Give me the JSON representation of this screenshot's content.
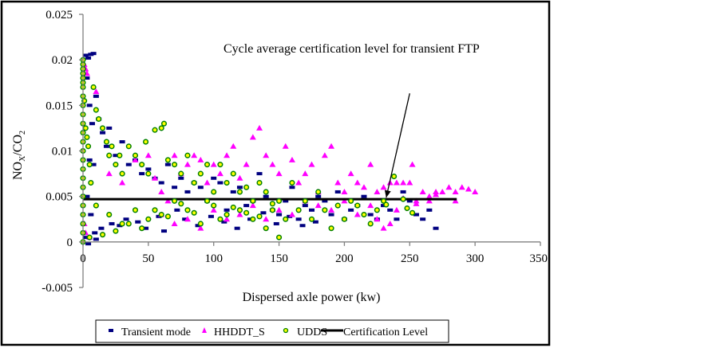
{
  "chart_data": {
    "type": "scatter",
    "title": "",
    "xlabel": "Dispersed axle power (kw)",
    "ylabel_main": "NO",
    "ylabel_sub1": "X",
    "ylabel_mid": "/CO",
    "ylabel_sub2": "2",
    "xlim": [
      0,
      350
    ],
    "ylim": [
      -0.005,
      0.025
    ],
    "x_ticks": [
      0,
      50,
      100,
      150,
      200,
      250,
      300,
      350
    ],
    "x_tick_labels": [
      "0",
      "50",
      "100",
      "150",
      "200",
      "250",
      "300",
      "350"
    ],
    "y_ticks": [
      -0.005,
      0,
      0.005,
      0.01,
      0.015,
      0.02,
      0.025
    ],
    "y_tick_labels": [
      "-0.005",
      "0",
      "0.005",
      "0.01",
      "0.015",
      "0.02",
      "0.025"
    ],
    "grid": false,
    "legend_position": "bottom",
    "annotation": {
      "text": "Cycle average certification level for transient FTP",
      "arrow_from": [
        250,
        0.0102
      ],
      "arrow_to": [
        232,
        0.0047
      ]
    },
    "series": [
      {
        "name": "Transient mode",
        "marker": "dash",
        "color": "#000080",
        "points": [
          [
            2,
            0.0205
          ],
          [
            4,
            0.0202
          ],
          [
            6,
            0.0206
          ],
          [
            8,
            0.0207
          ],
          [
            3,
            0.018
          ],
          [
            5,
            0.015
          ],
          [
            10,
            0.016
          ],
          [
            7,
            0.013
          ],
          [
            12,
            0.0135
          ],
          [
            15,
            0.012
          ],
          [
            20,
            0.0125
          ],
          [
            18,
            0.0105
          ],
          [
            25,
            0.0095
          ],
          [
            30,
            0.011
          ],
          [
            35,
            0.0085
          ],
          [
            40,
            0.009
          ],
          [
            45,
            0.0075
          ],
          [
            50,
            0.008
          ],
          [
            55,
            0.007
          ],
          [
            60,
            0.0065
          ],
          [
            65,
            0.0085
          ],
          [
            70,
            0.006
          ],
          [
            75,
            0.007
          ],
          [
            80,
            0.0055
          ],
          [
            85,
            0.0065
          ],
          [
            90,
            0.006
          ],
          [
            95,
            0.0045
          ],
          [
            100,
            0.007
          ],
          [
            105,
            0.0065
          ],
          [
            110,
            0.0035
          ],
          [
            115,
            0.0055
          ],
          [
            120,
            0.006
          ],
          [
            125,
            0.004
          ],
          [
            130,
            0.0045
          ],
          [
            135,
            0.0075
          ],
          [
            140,
            0.005
          ],
          [
            145,
            0.0035
          ],
          [
            150,
            0.003
          ],
          [
            155,
            0.0045
          ],
          [
            160,
            0.006
          ],
          [
            165,
            0.0025
          ],
          [
            170,
            0.004
          ],
          [
            175,
            0.0035
          ],
          [
            180,
            0.005
          ],
          [
            185,
            0.0045
          ],
          [
            190,
            0.003
          ],
          [
            195,
            0.0055
          ],
          [
            200,
            0.0025
          ],
          [
            205,
            0.0035
          ],
          [
            210,
            0.004
          ],
          [
            215,
            0.005
          ],
          [
            220,
            0.003
          ],
          [
            225,
            0.0025
          ],
          [
            230,
            0.004
          ],
          [
            235,
            0.0035
          ],
          [
            240,
            0.0025
          ],
          [
            245,
            0.0055
          ],
          [
            250,
            0.0045
          ],
          [
            255,
            0.003
          ],
          [
            260,
            0.0025
          ],
          [
            265,
            0.0035
          ],
          [
            270,
            0.0015
          ],
          [
            5,
            0.009
          ],
          [
            8,
            0.0085
          ],
          [
            3,
            0.005
          ],
          [
            6,
            0.003
          ],
          [
            9,
            0.001
          ],
          [
            14,
            0.0015
          ],
          [
            22,
            0.002
          ],
          [
            28,
            0.0018
          ],
          [
            33,
            0.0025
          ],
          [
            42,
            0.0022
          ],
          [
            48,
            0.0015
          ],
          [
            58,
            0.0028
          ],
          [
            62,
            0.0012
          ],
          [
            72,
            0.0035
          ],
          [
            78,
            0.0025
          ],
          [
            88,
            0.0018
          ],
          [
            98,
            0.0028
          ],
          [
            108,
            0.0022
          ],
          [
            118,
            0.0015
          ],
          [
            128,
            0.0025
          ],
          [
            138,
            0.0032
          ],
          [
            148,
            0.002
          ],
          [
            158,
            0.0028
          ],
          [
            168,
            0.0018
          ],
          [
            178,
            0.0022
          ],
          [
            2,
            0.0005
          ],
          [
            4,
            -0.0002
          ],
          [
            10,
            0.0003
          ]
        ]
      },
      {
        "name": "HHDDT_S",
        "marker": "triangle",
        "color": "#ff00ff",
        "points": [
          [
            1,
            0.0195
          ],
          [
            2,
            0.019
          ],
          [
            3,
            0.0185
          ],
          [
            1,
            0.002
          ],
          [
            2,
            0.001
          ],
          [
            5,
            0.0005
          ],
          [
            10,
            0.0165
          ],
          [
            20,
            0.0075
          ],
          [
            30,
            0.0065
          ],
          [
            40,
            0.009
          ],
          [
            50,
            0.0095
          ],
          [
            55,
            0.007
          ],
          [
            60,
            0.0055
          ],
          [
            65,
            0.0045
          ],
          [
            70,
            0.0095
          ],
          [
            75,
            0.0075
          ],
          [
            80,
            0.0085
          ],
          [
            85,
            0.0095
          ],
          [
            90,
            0.009
          ],
          [
            95,
            0.0065
          ],
          [
            100,
            0.0085
          ],
          [
            105,
            0.0075
          ],
          [
            110,
            0.0095
          ],
          [
            115,
            0.0105
          ],
          [
            120,
            0.007
          ],
          [
            125,
            0.0085
          ],
          [
            130,
            0.0115
          ],
          [
            135,
            0.0125
          ],
          [
            140,
            0.0095
          ],
          [
            145,
            0.0085
          ],
          [
            150,
            0.0075
          ],
          [
            155,
            0.0105
          ],
          [
            160,
            0.009
          ],
          [
            165,
            0.0065
          ],
          [
            170,
            0.0075
          ],
          [
            175,
            0.0085
          ],
          [
            180,
            0.0055
          ],
          [
            185,
            0.0095
          ],
          [
            190,
            0.0105
          ],
          [
            195,
            0.0065
          ],
          [
            200,
            0.0055
          ],
          [
            205,
            0.0075
          ],
          [
            210,
            0.0065
          ],
          [
            215,
            0.006
          ],
          [
            220,
            0.0085
          ],
          [
            225,
            0.0055
          ],
          [
            230,
            0.006
          ],
          [
            235,
            0.0065
          ],
          [
            240,
            0.0065
          ],
          [
            245,
            0.0065
          ],
          [
            250,
            0.0065
          ],
          [
            252,
            0.0085
          ],
          [
            255,
            0.0045
          ],
          [
            260,
            0.0055
          ],
          [
            265,
            0.005
          ],
          [
            270,
            0.0055
          ],
          [
            275,
            0.0055
          ],
          [
            280,
            0.006
          ],
          [
            285,
            0.0055
          ],
          [
            290,
            0.006
          ],
          [
            295,
            0.0058
          ],
          [
            300,
            0.0055
          ],
          [
            60,
            0.003
          ],
          [
            70,
            0.002
          ],
          [
            80,
            0.0025
          ],
          [
            90,
            0.0015
          ],
          [
            100,
            0.0035
          ],
          [
            110,
            0.0025
          ],
          [
            120,
            0.003
          ],
          [
            130,
            0.004
          ],
          [
            140,
            0.0025
          ],
          [
            150,
            0.0035
          ],
          [
            160,
            0.003
          ],
          [
            170,
            0.0045
          ],
          [
            180,
            0.004
          ],
          [
            190,
            0.0035
          ],
          [
            200,
            0.0045
          ],
          [
            210,
            0.003
          ],
          [
            220,
            0.004
          ],
          [
            230,
            0.0015
          ],
          [
            235,
            0.002
          ],
          [
            240,
            0.0035
          ],
          [
            225,
            0.0025
          ],
          [
            245,
            0.0048
          ],
          [
            255,
            0.0042
          ],
          [
            265,
            0.0045
          ],
          [
            270,
            0.0052
          ],
          [
            285,
            0.0045
          ]
        ]
      },
      {
        "name": "UDDS",
        "marker": "circle",
        "color": "#ffff00",
        "edge_color": "#008000",
        "points": [
          [
            0,
            0.02
          ],
          [
            0,
            0.0195
          ],
          [
            0,
            0.019
          ],
          [
            0,
            0.0185
          ],
          [
            0,
            0.018
          ],
          [
            0,
            0.0175
          ],
          [
            0,
            0.017
          ],
          [
            0,
            0.016
          ],
          [
            0,
            0.015
          ],
          [
            0,
            0.014
          ],
          [
            0,
            0.013
          ],
          [
            0,
            0.012
          ],
          [
            0,
            0.011
          ],
          [
            0,
            0.01
          ],
          [
            0,
            0.009
          ],
          [
            0,
            0.008
          ],
          [
            0,
            0.007
          ],
          [
            0,
            0.006
          ],
          [
            0,
            0.005
          ],
          [
            0,
            0.004
          ],
          [
            0,
            0.003
          ],
          [
            0,
            0.002
          ],
          [
            0,
            0.001
          ],
          [
            0,
            0.0
          ],
          [
            1,
            0.0155
          ],
          [
            2,
            0.0125
          ],
          [
            3,
            0.0115
          ],
          [
            4,
            0.0105
          ],
          [
            5,
            0.0085
          ],
          [
            6,
            0.0065
          ],
          [
            8,
            0.017
          ],
          [
            10,
            0.0145
          ],
          [
            12,
            0.0135
          ],
          [
            15,
            0.0125
          ],
          [
            18,
            0.011
          ],
          [
            20,
            0.0095
          ],
          [
            22,
            0.0105
          ],
          [
            25,
            0.0085
          ],
          [
            28,
            0.0095
          ],
          [
            30,
            0.0075
          ],
          [
            35,
            0.0105
          ],
          [
            40,
            0.0095
          ],
          [
            45,
            0.0085
          ],
          [
            48,
            0.011
          ],
          [
            50,
            0.0075
          ],
          [
            55,
            0.0123
          ],
          [
            60,
            0.0125
          ],
          [
            62,
            0.013
          ],
          [
            65,
            0.009
          ],
          [
            70,
            0.0085
          ],
          [
            75,
            0.0075
          ],
          [
            80,
            0.0095
          ],
          [
            85,
            0.0065
          ],
          [
            90,
            0.0075
          ],
          [
            95,
            0.0085
          ],
          [
            100,
            0.0055
          ],
          [
            105,
            0.0085
          ],
          [
            110,
            0.0065
          ],
          [
            115,
            0.0075
          ],
          [
            120,
            0.0055
          ],
          [
            125,
            0.006
          ],
          [
            130,
            0.0045
          ],
          [
            135,
            0.0065
          ],
          [
            140,
            0.0055
          ],
          [
            145,
            0.0035
          ],
          [
            150,
            0.0045
          ],
          [
            155,
            0.0025
          ],
          [
            160,
            0.0065
          ],
          [
            165,
            0.0035
          ],
          [
            170,
            0.0045
          ],
          [
            175,
            0.0025
          ],
          [
            180,
            0.0055
          ],
          [
            185,
            0.0035
          ],
          [
            190,
            0.0015
          ],
          [
            195,
            0.004
          ],
          [
            200,
            0.0025
          ],
          [
            205,
            0.0045
          ],
          [
            210,
            0.004
          ],
          [
            215,
            0.003
          ],
          [
            220,
            0.002
          ],
          [
            225,
            0.0035
          ],
          [
            230,
            0.0045
          ],
          [
            232,
            0.0041
          ],
          [
            238,
            0.0072
          ],
          [
            245,
            0.0047
          ],
          [
            248,
            0.0037
          ],
          [
            252,
            0.0032
          ],
          [
            10,
            0.004
          ],
          [
            20,
            0.003
          ],
          [
            30,
            0.002
          ],
          [
            40,
            0.0035
          ],
          [
            50,
            0.0025
          ],
          [
            60,
            0.003
          ],
          [
            70,
            0.0045
          ],
          [
            80,
            0.0035
          ],
          [
            90,
            0.002
          ],
          [
            100,
            0.004
          ],
          [
            110,
            0.003
          ],
          [
            120,
            0.0035
          ],
          [
            130,
            0.0025
          ],
          [
            140,
            0.0015
          ],
          [
            150,
            0.0005
          ],
          [
            5,
            0.0005
          ],
          [
            15,
            0.0008
          ],
          [
            25,
            0.0012
          ],
          [
            35,
            0.002
          ],
          [
            45,
            0.0015
          ],
          [
            55,
            0.0035
          ],
          [
            65,
            0.0028
          ],
          [
            75,
            0.0042
          ],
          [
            85,
            0.0032
          ],
          [
            95,
            0.0045
          ],
          [
            105,
            0.0025
          ],
          [
            115,
            0.0038
          ],
          [
            125,
            0.0032
          ],
          [
            135,
            0.0028
          ],
          [
            145,
            0.0042
          ]
        ]
      },
      {
        "name": "Certification Level",
        "marker": "line",
        "color": "#000000",
        "x": [
          0,
          286
        ],
        "y": [
          0.0047,
          0.0047
        ]
      }
    ]
  }
}
